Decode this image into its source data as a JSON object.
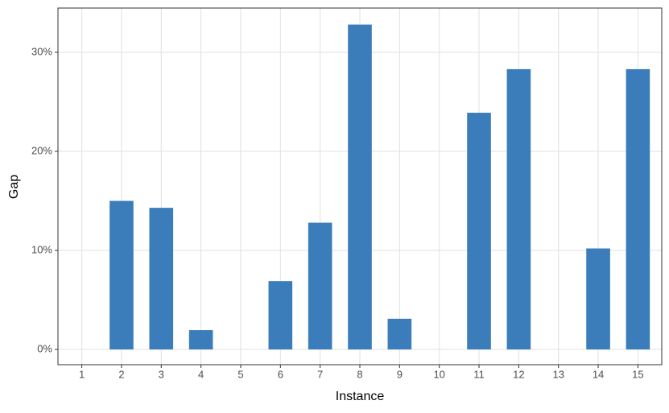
{
  "chart_data": {
    "type": "bar",
    "x_label": "Instance",
    "y_label": "Gap",
    "categories": [
      "1",
      "2",
      "3",
      "4",
      "5",
      "6",
      "7",
      "8",
      "9",
      "10",
      "11",
      "12",
      "13",
      "14",
      "15"
    ],
    "values": [
      0,
      15.0,
      14.3,
      1.95,
      0,
      6.9,
      12.8,
      32.8,
      3.1,
      0,
      23.9,
      28.3,
      0,
      10.2,
      28.3
    ],
    "color": "#3a7dba",
    "ylim": [
      -1.54,
      34.47
    ],
    "yticks": [
      {
        "value": 0,
        "label": "0%"
      },
      {
        "value": 10,
        "label": "10%"
      },
      {
        "value": 20,
        "label": "20%"
      },
      {
        "value": 30,
        "label": "30%"
      }
    ],
    "grid": true
  }
}
